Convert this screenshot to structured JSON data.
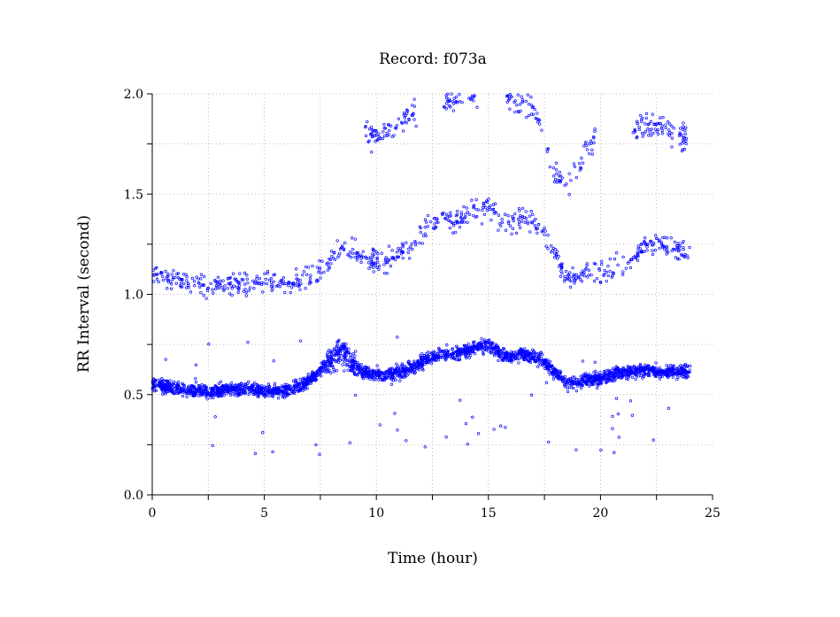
{
  "chart_data": {
    "type": "scatter",
    "title": "Record:  f073a",
    "xlabel": "Time (hour)",
    "ylabel": "RR Interval (second)",
    "xlim": [
      0,
      25
    ],
    "ylim": [
      0.0,
      2.0
    ],
    "xticks": [
      "0",
      "5",
      "10",
      "15",
      "20",
      "25"
    ],
    "yticks": [
      "0.0",
      "0.5",
      "1.0",
      "1.5",
      "2.0"
    ],
    "grid": true,
    "marker_color": "#0000ff",
    "series": [
      {
        "trend_main": [
          [
            0,
            0.55
          ],
          [
            0.5,
            0.54
          ],
          [
            1,
            0.53
          ],
          [
            1.5,
            0.52
          ],
          [
            2,
            0.52
          ],
          [
            2.5,
            0.51
          ],
          [
            3,
            0.52
          ],
          [
            4,
            0.53
          ],
          [
            5,
            0.52
          ],
          [
            6,
            0.52
          ],
          [
            6.5,
            0.54
          ],
          [
            7,
            0.57
          ],
          [
            7.5,
            0.62
          ],
          [
            8,
            0.68
          ],
          [
            8.5,
            0.72
          ],
          [
            9,
            0.65
          ],
          [
            9.5,
            0.61
          ],
          [
            10,
            0.6
          ],
          [
            10.5,
            0.6
          ],
          [
            11,
            0.61
          ],
          [
            11.5,
            0.63
          ],
          [
            12,
            0.66
          ],
          [
            12.5,
            0.69
          ],
          [
            13,
            0.7
          ],
          [
            13.5,
            0.7
          ],
          [
            14,
            0.72
          ],
          [
            14.5,
            0.74
          ],
          [
            15,
            0.75
          ],
          [
            15.5,
            0.7
          ],
          [
            16,
            0.69
          ],
          [
            16.5,
            0.7
          ],
          [
            17,
            0.69
          ],
          [
            17.5,
            0.67
          ],
          [
            18,
            0.6
          ],
          [
            18.5,
            0.56
          ],
          [
            19,
            0.56
          ],
          [
            19.5,
            0.57
          ],
          [
            20,
            0.58
          ],
          [
            20.5,
            0.6
          ],
          [
            21,
            0.61
          ],
          [
            22,
            0.62
          ],
          [
            23,
            0.61
          ],
          [
            24,
            0.62
          ]
        ],
        "trend_upper": [
          [
            0,
            1.1
          ],
          [
            1,
            1.08
          ],
          [
            2,
            1.05
          ],
          [
            3,
            1.04
          ],
          [
            4,
            1.05
          ],
          [
            5,
            1.07
          ],
          [
            6,
            1.05
          ],
          [
            7,
            1.08
          ],
          [
            7.5,
            1.12
          ],
          [
            8,
            1.17
          ],
          [
            8.5,
            1.25
          ],
          [
            9,
            1.22
          ],
          [
            9.5,
            1.18
          ],
          [
            10,
            1.17
          ],
          [
            10.5,
            1.17
          ],
          [
            11,
            1.2
          ],
          [
            11.5,
            1.22
          ],
          [
            12,
            1.3
          ],
          [
            12.5,
            1.36
          ],
          [
            13,
            1.38
          ],
          [
            13.5,
            1.35
          ],
          [
            14,
            1.4
          ],
          [
            15,
            1.45
          ],
          [
            15.5,
            1.37
          ],
          [
            16,
            1.36
          ],
          [
            16.5,
            1.38
          ],
          [
            17,
            1.35
          ],
          [
            17.5,
            1.3
          ],
          [
            18,
            1.2
          ],
          [
            18.5,
            1.08
          ],
          [
            19,
            1.1
          ],
          [
            19.5,
            1.12
          ],
          [
            20,
            1.1
          ],
          [
            21,
            1.15
          ],
          [
            22,
            1.25
          ],
          [
            23,
            1.25
          ],
          [
            24,
            1.2
          ]
        ],
        "trend_top": [
          [
            9.5,
            1.82
          ],
          [
            10,
            1.78
          ],
          [
            10.5,
            1.8
          ],
          [
            11,
            1.87
          ],
          [
            13,
            1.95
          ],
          [
            13.5,
            1.97
          ],
          [
            14,
            2.0
          ],
          [
            16,
            1.98
          ],
          [
            17,
            1.93
          ],
          [
            17.5,
            1.8
          ],
          [
            18,
            1.6
          ],
          [
            18.5,
            1.55
          ],
          [
            19.5,
            1.75
          ],
          [
            21.5,
            1.82
          ],
          [
            22,
            1.85
          ],
          [
            23,
            1.82
          ],
          [
            23.5,
            1.78
          ]
        ]
      }
    ]
  }
}
